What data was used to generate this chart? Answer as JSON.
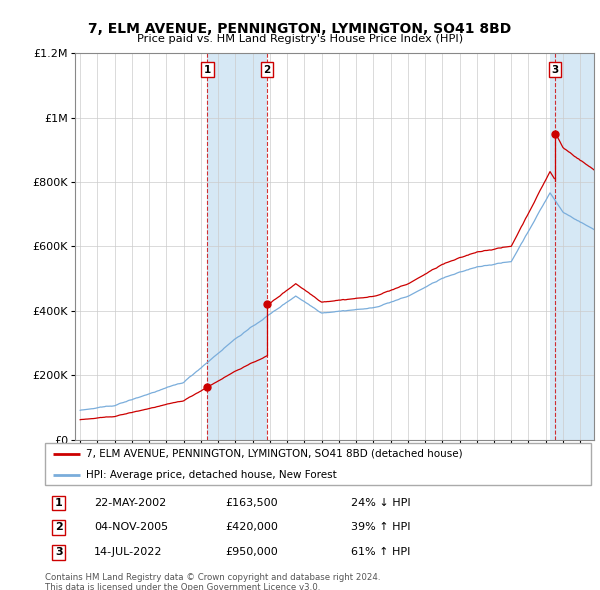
{
  "title": "7, ELM AVENUE, PENNINGTON, LYMINGTON, SO41 8BD",
  "subtitle": "Price paid vs. HM Land Registry's House Price Index (HPI)",
  "hpi_label": "HPI: Average price, detached house, New Forest",
  "property_label": "7, ELM AVENUE, PENNINGTON, LYMINGTON, SO41 8BD (detached house)",
  "purchases": [
    {
      "num": 1,
      "date_str": "22-MAY-2002",
      "price": 163500,
      "pct": "24%",
      "dir": "↓",
      "year": 2002.38
    },
    {
      "num": 2,
      "date_str": "04-NOV-2005",
      "price": 420000,
      "pct": "39%",
      "dir": "↑",
      "year": 2005.84
    },
    {
      "num": 3,
      "date_str": "14-JUL-2022",
      "price": 950000,
      "pct": "61%",
      "dir": "↑",
      "year": 2022.53
    }
  ],
  "footnote1": "Contains HM Land Registry data © Crown copyright and database right 2024.",
  "footnote2": "This data is licensed under the Open Government Licence v3.0.",
  "property_color": "#cc0000",
  "hpi_color": "#7aaddb",
  "highlight_color": "#d6e8f5",
  "vline_color": "#cc0000",
  "ylim_max": 1200000,
  "xlim_start": 1994.7,
  "xlim_end": 2024.8,
  "yticks": [
    0,
    200000,
    400000,
    600000,
    800000,
    1000000,
    1200000
  ],
  "ytick_labels": [
    "£0",
    "£200K",
    "£400K",
    "£600K",
    "£800K",
    "£1M",
    "£1.2M"
  ]
}
